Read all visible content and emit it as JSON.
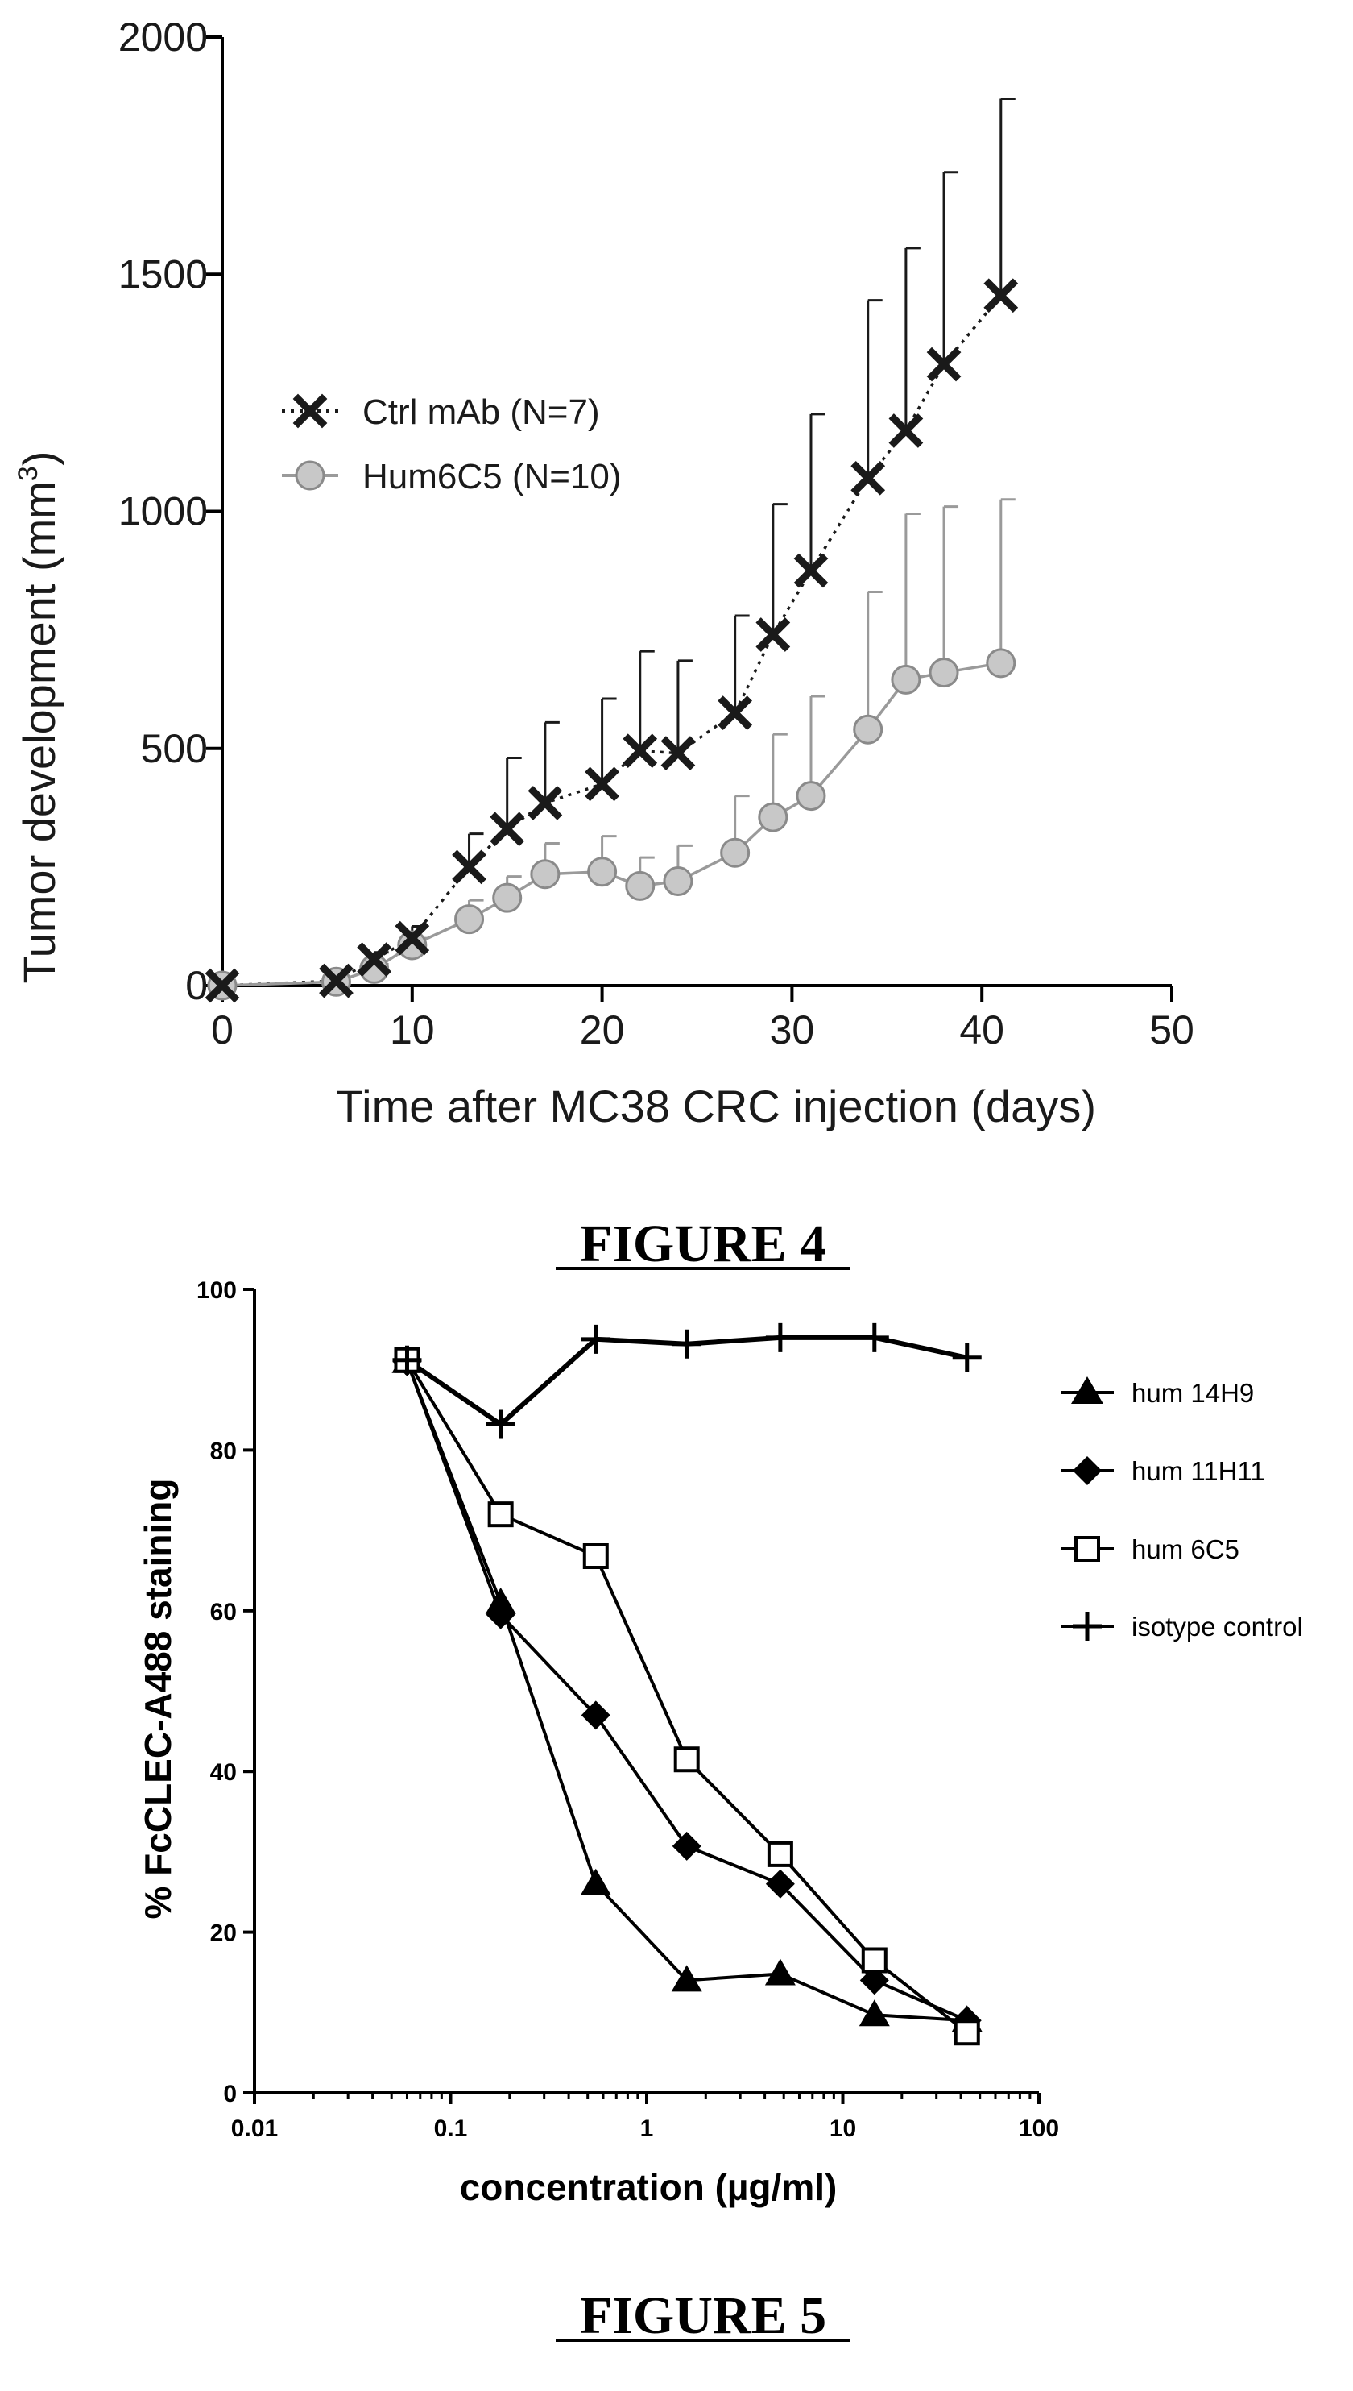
{
  "figures": [
    {
      "caption": "FIGURE 4"
    },
    {
      "caption": "FIGURE 5"
    }
  ],
  "chart_data": [
    {
      "type": "line",
      "title": "",
      "xlabel": "Time after MC38 CRC injection (days)",
      "ylabel_prefix": "Tumor development (mm",
      "ylabel_exponent": "3",
      "ylabel_suffix": ")",
      "xlim": [
        0,
        50
      ],
      "ylim": [
        0,
        2000
      ],
      "xticks": [
        "0",
        "10",
        "20",
        "30",
        "40",
        "50"
      ],
      "yticks": [
        "0",
        "500",
        "1000",
        "1500",
        "2000"
      ],
      "grid": false,
      "legend_position": "upper-left",
      "series": [
        {
          "name": "Ctrl mAb (N=7)",
          "marker": "x",
          "line_style": "dotted",
          "color": "#1a1a1a",
          "x": [
            0,
            6,
            8,
            10,
            13,
            15,
            17,
            20,
            22,
            24,
            27,
            29,
            31,
            34,
            36,
            38,
            41
          ],
          "y": [
            0,
            10,
            55,
            100,
            250,
            330,
            385,
            425,
            495,
            490,
            575,
            740,
            875,
            1070,
            1170,
            1310,
            1455
          ],
          "error_upper": [
            0,
            5,
            15,
            25,
            70,
            150,
            170,
            180,
            210,
            195,
            205,
            275,
            330,
            375,
            385,
            405,
            415
          ]
        },
        {
          "name": "Hum6C5 (N=10)",
          "marker": "circle",
          "line_style": "solid",
          "color": "#9a9a9a",
          "marker_fill": "#c8c8c8",
          "x": [
            0,
            6,
            8,
            10,
            13,
            15,
            17,
            20,
            22,
            24,
            27,
            29,
            31,
            34,
            36,
            38,
            41
          ],
          "y": [
            0,
            8,
            35,
            85,
            140,
            185,
            235,
            240,
            210,
            220,
            280,
            355,
            400,
            540,
            645,
            660,
            680
          ],
          "error_upper": [
            0,
            5,
            10,
            15,
            40,
            45,
            65,
            75,
            60,
            75,
            120,
            175,
            210,
            290,
            350,
            350,
            345
          ]
        }
      ]
    },
    {
      "type": "line",
      "title": "",
      "xlabel": "concentration (µg/ml)",
      "ylabel": "% FcCLEC-A488 staining",
      "xscale": "log",
      "xlim": [
        0.01,
        100
      ],
      "ylim": [
        0,
        100
      ],
      "xticks": [
        "0.01",
        "0.1",
        "1",
        "10",
        "100"
      ],
      "yticks": [
        "0",
        "20",
        "40",
        "60",
        "80",
        "100"
      ],
      "grid": false,
      "legend_position": "right",
      "series": [
        {
          "name": "hum 14H9",
          "marker": "triangle",
          "x": [
            0.06,
            0.18,
            0.55,
            1.6,
            4.8,
            14.5,
            43
          ],
          "y": [
            91,
            61,
            26,
            14,
            14.8,
            9.7,
            9
          ]
        },
        {
          "name": "hum 11H11",
          "marker": "diamond",
          "x": [
            0.06,
            0.18,
            0.55,
            1.6,
            4.8,
            14.5,
            43
          ],
          "y": [
            91,
            59.5,
            47,
            30.7,
            26,
            14,
            9
          ]
        },
        {
          "name": "hum 6C5",
          "marker": "square-open",
          "x": [
            0.06,
            0.18,
            0.55,
            1.6,
            4.8,
            14.5,
            43
          ],
          "y": [
            91.2,
            72,
            66.8,
            41.5,
            29.7,
            16.5,
            7.5
          ]
        },
        {
          "name": "isotype control",
          "marker": "plus",
          "x": [
            0.06,
            0.18,
            0.55,
            1.6,
            4.8,
            14.5,
            43
          ],
          "y": [
            91.2,
            83.2,
            93.8,
            93.2,
            94,
            94,
            91.5
          ]
        }
      ]
    }
  ]
}
